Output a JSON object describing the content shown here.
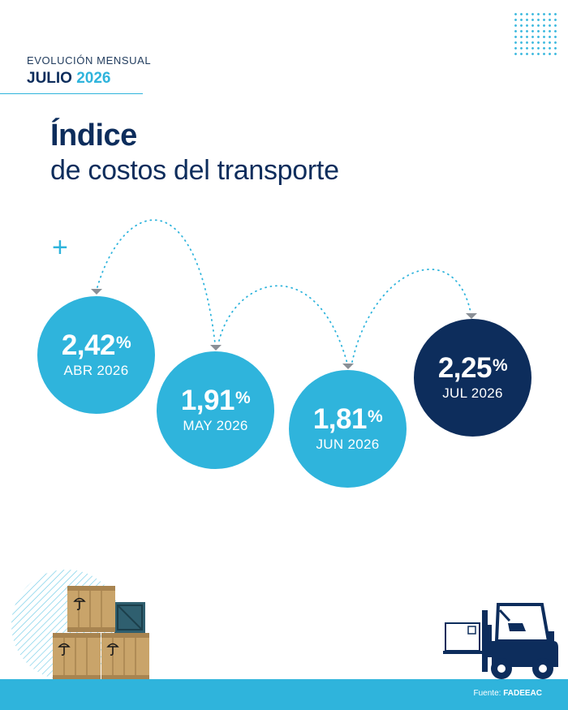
{
  "header": {
    "eyebrow": "EVOLUCIÓN MENSUAL",
    "month": "JULIO",
    "year": "2026"
  },
  "title": {
    "line1": "Índice",
    "line2": "de costos del transporte"
  },
  "plus_symbol": "+",
  "months": [
    {
      "value": "2,42",
      "unit": "%",
      "label": "ABR 2026"
    },
    {
      "value": "1,91",
      "unit": "%",
      "label": "MAY 2026"
    },
    {
      "value": "1,81",
      "unit": "%",
      "label": "JUN 2026"
    },
    {
      "value": "2,25",
      "unit": "%",
      "label": "JUL 2026"
    }
  ],
  "footer": {
    "source_prefix": "Fuente:",
    "source_name": "FADEEAC"
  },
  "colors": {
    "navy": "#0d2d5c",
    "cyan": "#2fb4dc",
    "crate": "#c9a46a",
    "crate_dark": "#a88450",
    "teal_box": "#2f5f6f"
  },
  "icons": [
    "dot-grid-icon",
    "plus-icon",
    "crates-illustration",
    "forklift-illustration"
  ]
}
